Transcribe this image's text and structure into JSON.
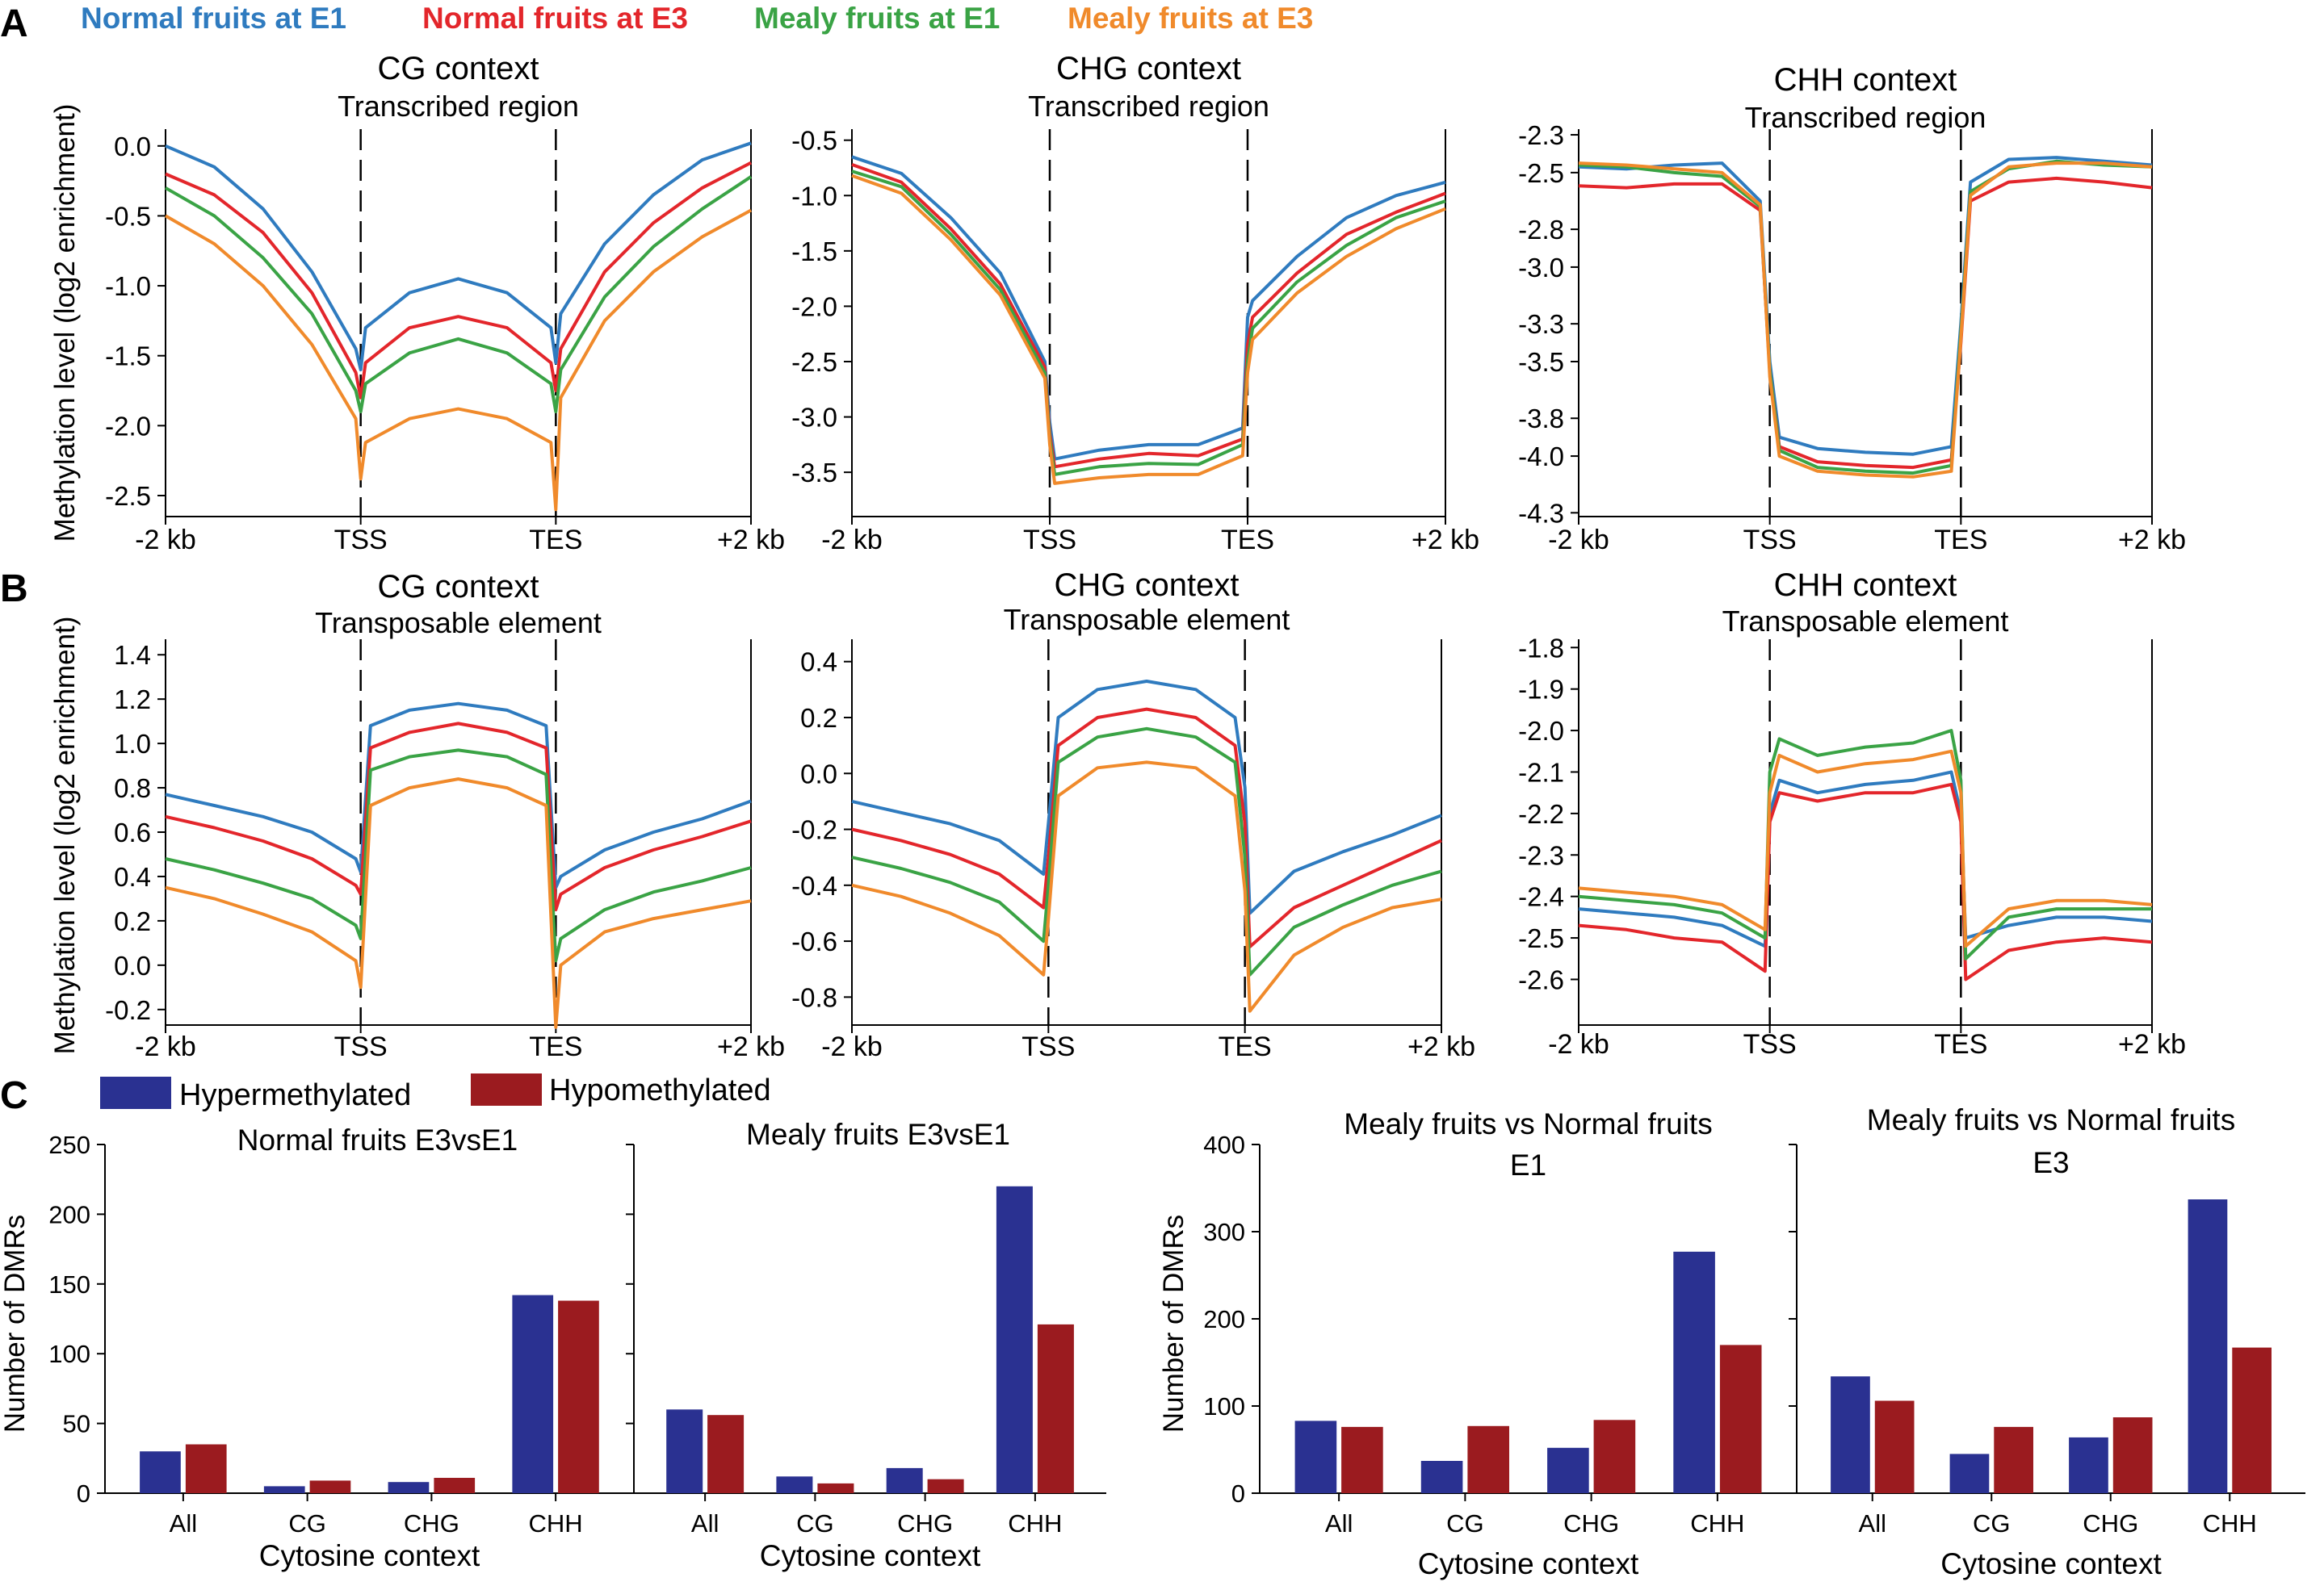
{
  "panel_labels": [
    "A",
    "B",
    "C"
  ],
  "legend": {
    "items": [
      {
        "label": "Normal fruits at E1",
        "color": "#2f7bbf"
      },
      {
        "label": "Normal fruits at E3",
        "color": "#e3262b"
      },
      {
        "label": "Mealy fruits at E1",
        "color": "#3aa345"
      },
      {
        "label": "Mealy fruits at E3",
        "color": "#f08a2b"
      }
    ]
  },
  "bar_legend": {
    "items": [
      {
        "label": "Hypermethylated",
        "color": "#2a3191"
      },
      {
        "label": "Hypomethylated",
        "color": "#9b1b1f"
      }
    ]
  },
  "chart_data": [
    {
      "type": "line",
      "panel": "A",
      "title": "CG context",
      "subtitle": "Transcribed region",
      "ylabel": "Methylation level (log2 enrichment)",
      "x_tick_labels": [
        "-2 kb",
        "TSS",
        "TES",
        "+2 kb"
      ],
      "ylim": [
        -2.65,
        0.12
      ],
      "yticks": [
        0.0,
        -0.5,
        -1.0,
        -1.5,
        -2.0,
        -2.5
      ],
      "ytick_labels": [
        "0.0",
        "-0.5",
        "-1.0",
        "-1.5",
        "-2.0",
        "-2.5"
      ],
      "boundaries": [
        "TSS",
        "TES"
      ],
      "x": [
        0,
        0.5,
        1.0,
        1.5,
        1.95,
        2.0,
        2.05,
        2.5,
        3.0,
        3.5,
        3.95,
        4.0,
        4.05,
        4.5,
        5.0,
        5.5,
        6.0
      ],
      "series": [
        {
          "name": "Normal fruits at E1",
          "values": [
            0.0,
            -0.15,
            -0.45,
            -0.9,
            -1.45,
            -1.6,
            -1.3,
            -1.05,
            -0.95,
            -1.05,
            -1.3,
            -1.55,
            -1.2,
            -0.7,
            -0.35,
            -0.1,
            0.02
          ]
        },
        {
          "name": "Normal fruits at E3",
          "values": [
            -0.2,
            -0.35,
            -0.62,
            -1.05,
            -1.62,
            -1.8,
            -1.55,
            -1.3,
            -1.22,
            -1.3,
            -1.55,
            -1.75,
            -1.45,
            -0.9,
            -0.55,
            -0.3,
            -0.12
          ]
        },
        {
          "name": "Mealy fruits at E1",
          "values": [
            -0.3,
            -0.5,
            -0.8,
            -1.2,
            -1.75,
            -1.9,
            -1.7,
            -1.48,
            -1.38,
            -1.48,
            -1.7,
            -1.9,
            -1.6,
            -1.08,
            -0.72,
            -0.45,
            -0.22
          ]
        },
        {
          "name": "Mealy fruits at E3",
          "values": [
            -0.5,
            -0.7,
            -1.0,
            -1.42,
            -1.95,
            -2.38,
            -2.12,
            -1.95,
            -1.88,
            -1.95,
            -2.12,
            -2.6,
            -1.8,
            -1.25,
            -0.9,
            -0.65,
            -0.46
          ]
        }
      ]
    },
    {
      "type": "line",
      "panel": "A",
      "title": "CHG context",
      "subtitle": "Transcribed region",
      "ylabel": "",
      "x_tick_labels": [
        "-2 kb",
        "TSS",
        "TES",
        "+2 kb"
      ],
      "ylim": [
        -3.9,
        -0.4
      ],
      "yticks": [
        -0.5,
        -1.0,
        -1.5,
        -2.0,
        -2.5,
        -3.0,
        -3.5
      ],
      "ytick_labels": [
        "-0.5",
        "-1.0",
        "-1.5",
        "-2.0",
        "-2.5",
        "-3.0",
        "-3.5"
      ],
      "boundaries": [
        "TSS",
        "TES"
      ],
      "x": [
        0,
        0.5,
        1.0,
        1.5,
        1.95,
        2.0,
        2.05,
        2.5,
        3.0,
        3.5,
        3.95,
        4.0,
        4.05,
        4.5,
        5.0,
        5.5,
        6.0
      ],
      "series": [
        {
          "name": "Normal fruits at E1",
          "values": [
            -0.65,
            -0.8,
            -1.2,
            -1.7,
            -2.5,
            -3.05,
            -3.38,
            -3.3,
            -3.25,
            -3.25,
            -3.1,
            -2.1,
            -1.95,
            -1.55,
            -1.2,
            -1.0,
            -0.88
          ]
        },
        {
          "name": "Normal fruits at E3",
          "values": [
            -0.72,
            -0.88,
            -1.3,
            -1.8,
            -2.55,
            -3.15,
            -3.45,
            -3.38,
            -3.33,
            -3.35,
            -3.2,
            -2.35,
            -2.1,
            -1.7,
            -1.35,
            -1.15,
            -0.98
          ]
        },
        {
          "name": "Mealy fruits at E1",
          "values": [
            -0.78,
            -0.92,
            -1.35,
            -1.85,
            -2.6,
            -3.2,
            -3.52,
            -3.45,
            -3.42,
            -3.43,
            -3.25,
            -2.5,
            -2.2,
            -1.78,
            -1.45,
            -1.2,
            -1.05
          ]
        },
        {
          "name": "Mealy fruits at E3",
          "values": [
            -0.82,
            -0.98,
            -1.4,
            -1.9,
            -2.65,
            -3.25,
            -3.6,
            -3.55,
            -3.52,
            -3.52,
            -3.35,
            -2.6,
            -2.3,
            -1.88,
            -1.55,
            -1.3,
            -1.12
          ]
        }
      ]
    },
    {
      "type": "line",
      "panel": "A",
      "title": "CHH context",
      "subtitle": "Transcribed region",
      "ylabel": "",
      "x_tick_labels": [
        "-2 kb",
        "TSS",
        "TES",
        "+2 kb"
      ],
      "ylim": [
        -4.32,
        -2.27
      ],
      "yticks": [
        -2.3,
        -2.5,
        -2.8,
        -3.0,
        -3.3,
        -3.5,
        -3.8,
        -4.0,
        -4.3
      ],
      "ytick_labels": [
        "-2.3",
        "-2.5",
        "-2.8",
        "-3.0",
        "-3.3",
        "-3.5",
        "-3.8",
        "-4.0",
        "-4.3"
      ],
      "boundaries": [
        "TSS",
        "TES"
      ],
      "x": [
        0,
        0.5,
        1.0,
        1.5,
        1.9,
        2.0,
        2.1,
        2.5,
        3.0,
        3.5,
        3.9,
        4.0,
        4.1,
        4.5,
        5.0,
        5.5,
        6.0
      ],
      "series": [
        {
          "name": "Normal fruits at E1",
          "values": [
            -2.47,
            -2.48,
            -2.46,
            -2.45,
            -2.65,
            -3.5,
            -3.9,
            -3.96,
            -3.98,
            -3.99,
            -3.95,
            -3.3,
            -2.55,
            -2.43,
            -2.42,
            -2.44,
            -2.46
          ]
        },
        {
          "name": "Normal fruits at E3",
          "values": [
            -2.57,
            -2.58,
            -2.56,
            -2.56,
            -2.7,
            -3.55,
            -3.95,
            -4.03,
            -4.05,
            -4.06,
            -4.02,
            -3.4,
            -2.65,
            -2.55,
            -2.53,
            -2.55,
            -2.58
          ]
        },
        {
          "name": "Mealy fruits at E1",
          "values": [
            -2.46,
            -2.47,
            -2.5,
            -2.52,
            -2.68,
            -3.55,
            -3.97,
            -4.06,
            -4.08,
            -4.09,
            -4.05,
            -3.35,
            -2.6,
            -2.48,
            -2.44,
            -2.46,
            -2.47
          ]
        },
        {
          "name": "Mealy fruits at E3",
          "values": [
            -2.45,
            -2.46,
            -2.48,
            -2.5,
            -2.67,
            -3.58,
            -4.0,
            -4.08,
            -4.1,
            -4.11,
            -4.08,
            -3.38,
            -2.62,
            -2.47,
            -2.45,
            -2.45,
            -2.47
          ]
        }
      ]
    },
    {
      "type": "line",
      "panel": "B",
      "title": "CG context",
      "subtitle": "Transposable element",
      "ylabel": "Methylation level (log2 enrichment)",
      "x_tick_labels": [
        "-2 kb",
        "TSS",
        "TES",
        "+2 kb"
      ],
      "ylim": [
        -0.27,
        1.47
      ],
      "yticks": [
        1.4,
        1.2,
        1.0,
        0.8,
        0.6,
        0.4,
        0.2,
        0.0,
        -0.2
      ],
      "ytick_labels": [
        "1.4",
        "1.2",
        "1.0",
        "0.8",
        "0.6",
        "0.4",
        "0.2",
        "0.0",
        "-0.2"
      ],
      "boundaries": [
        "TSS",
        "TES"
      ],
      "x": [
        0,
        0.5,
        1.0,
        1.5,
        1.95,
        2.0,
        2.1,
        2.5,
        3.0,
        3.5,
        3.9,
        4.0,
        4.05,
        4.5,
        5.0,
        5.5,
        6.0
      ],
      "series": [
        {
          "name": "Normal fruits at E1",
          "values": [
            0.77,
            0.72,
            0.67,
            0.6,
            0.48,
            0.42,
            1.08,
            1.15,
            1.18,
            1.15,
            1.08,
            0.35,
            0.4,
            0.52,
            0.6,
            0.66,
            0.74
          ]
        },
        {
          "name": "Normal fruits at E3",
          "values": [
            0.67,
            0.62,
            0.56,
            0.48,
            0.36,
            0.32,
            0.98,
            1.05,
            1.09,
            1.05,
            0.98,
            0.25,
            0.32,
            0.44,
            0.52,
            0.58,
            0.65
          ]
        },
        {
          "name": "Mealy fruits at E1",
          "values": [
            0.48,
            0.43,
            0.37,
            0.3,
            0.18,
            0.12,
            0.88,
            0.94,
            0.97,
            0.94,
            0.86,
            0.02,
            0.12,
            0.25,
            0.33,
            0.38,
            0.44
          ]
        },
        {
          "name": "Mealy fruits at E3",
          "values": [
            0.35,
            0.3,
            0.23,
            0.15,
            0.02,
            -0.1,
            0.72,
            0.8,
            0.84,
            0.8,
            0.72,
            -0.28,
            0.0,
            0.15,
            0.21,
            0.25,
            0.29
          ]
        }
      ]
    },
    {
      "type": "line",
      "panel": "B",
      "title": "CHG context",
      "subtitle": "Transposable element",
      "ylabel": "",
      "x_tick_labels": [
        "-2 kb",
        "TSS",
        "TES",
        "+2 kb"
      ],
      "ylim": [
        -0.9,
        0.48
      ],
      "yticks": [
        0.4,
        0.2,
        0.0,
        -0.2,
        -0.4,
        -0.6,
        -0.8
      ],
      "ytick_labels": [
        "0.4",
        "0.2",
        "0.0",
        "-0.2",
        "-0.4",
        "-0.6",
        "-0.8"
      ],
      "boundaries": [
        "TSS",
        "TES"
      ],
      "x": [
        0,
        0.5,
        1.0,
        1.5,
        1.95,
        2.0,
        2.1,
        2.5,
        3.0,
        3.5,
        3.9,
        4.0,
        4.05,
        4.5,
        5.0,
        5.5,
        6.0
      ],
      "series": [
        {
          "name": "Normal fruits at E1",
          "values": [
            -0.1,
            -0.14,
            -0.18,
            -0.24,
            -0.36,
            -0.18,
            0.2,
            0.3,
            0.33,
            0.3,
            0.2,
            -0.05,
            -0.5,
            -0.35,
            -0.28,
            -0.22,
            -0.15
          ]
        },
        {
          "name": "Normal fruits at E3",
          "values": [
            -0.2,
            -0.24,
            -0.29,
            -0.36,
            -0.48,
            -0.3,
            0.1,
            0.2,
            0.23,
            0.2,
            0.1,
            -0.18,
            -0.62,
            -0.48,
            -0.4,
            -0.32,
            -0.24
          ]
        },
        {
          "name": "Mealy fruits at E1",
          "values": [
            -0.3,
            -0.34,
            -0.39,
            -0.46,
            -0.6,
            -0.4,
            0.04,
            0.13,
            0.16,
            0.13,
            0.04,
            -0.3,
            -0.72,
            -0.55,
            -0.47,
            -0.4,
            -0.35
          ]
        },
        {
          "name": "Mealy fruits at E3",
          "values": [
            -0.4,
            -0.44,
            -0.5,
            -0.58,
            -0.72,
            -0.52,
            -0.08,
            0.02,
            0.04,
            0.02,
            -0.08,
            -0.42,
            -0.85,
            -0.65,
            -0.55,
            -0.48,
            -0.45
          ]
        }
      ]
    },
    {
      "type": "line",
      "panel": "B",
      "title": "CHH context",
      "subtitle": "Transposable element",
      "ylabel": "",
      "x_tick_labels": [
        "-2 kb",
        "TSS",
        "TES",
        "+2 kb"
      ],
      "ylim": [
        -2.71,
        -1.78
      ],
      "yticks": [
        -1.8,
        -1.9,
        -2.0,
        -2.1,
        -2.2,
        -2.3,
        -2.4,
        -2.5,
        -2.6
      ],
      "ytick_labels": [
        "-1.8",
        "-1.9",
        "-2.0",
        "-2.1",
        "-2.2",
        "-2.3",
        "-2.4",
        "-2.5",
        "-2.6"
      ],
      "boundaries": [
        "TSS",
        "TES"
      ],
      "x": [
        0,
        0.5,
        1.0,
        1.5,
        1.95,
        2.0,
        2.1,
        2.5,
        3.0,
        3.5,
        3.9,
        4.0,
        4.05,
        4.5,
        5.0,
        5.5,
        6.0
      ],
      "series": [
        {
          "name": "Normal fruits at E1",
          "values": [
            -2.43,
            -2.44,
            -2.45,
            -2.47,
            -2.52,
            -2.2,
            -2.12,
            -2.15,
            -2.13,
            -2.12,
            -2.1,
            -2.2,
            -2.5,
            -2.47,
            -2.45,
            -2.45,
            -2.46
          ]
        },
        {
          "name": "Normal fruits at E3",
          "values": [
            -2.47,
            -2.48,
            -2.5,
            -2.51,
            -2.58,
            -2.22,
            -2.15,
            -2.17,
            -2.15,
            -2.15,
            -2.13,
            -2.22,
            -2.6,
            -2.53,
            -2.51,
            -2.5,
            -2.51
          ]
        },
        {
          "name": "Mealy fruits at E1",
          "values": [
            -2.4,
            -2.41,
            -2.42,
            -2.44,
            -2.5,
            -2.1,
            -2.02,
            -2.06,
            -2.04,
            -2.03,
            -2.0,
            -2.12,
            -2.55,
            -2.45,
            -2.43,
            -2.43,
            -2.43
          ]
        },
        {
          "name": "Mealy fruits at E3",
          "values": [
            -2.38,
            -2.39,
            -2.4,
            -2.42,
            -2.48,
            -2.15,
            -2.06,
            -2.1,
            -2.08,
            -2.07,
            -2.05,
            -2.15,
            -2.52,
            -2.43,
            -2.41,
            -2.41,
            -2.42
          ]
        }
      ]
    },
    {
      "type": "bar",
      "panel": "C",
      "title": "Normal fruits E3vsE1",
      "subtitle": "",
      "xlabel": "Cytosine context",
      "ylabel": "Number of DMRs",
      "categories": [
        "All",
        "CG",
        "CHG",
        "CHH"
      ],
      "ylim": [
        0,
        250
      ],
      "yticks": [
        0,
        50,
        100,
        150,
        200,
        250
      ],
      "ytick_labels": [
        "0",
        "50",
        "100",
        "150",
        "200",
        "250"
      ],
      "series": [
        {
          "name": "Hypermethylated",
          "values": [
            30,
            5,
            8,
            142
          ]
        },
        {
          "name": "Hypomethylated",
          "values": [
            35,
            9,
            11,
            138
          ]
        }
      ]
    },
    {
      "type": "bar",
      "panel": "C",
      "title": "Mealy fruits E3vsE1",
      "subtitle": "",
      "xlabel": "Cytosine context",
      "ylabel": "",
      "categories": [
        "All",
        "CG",
        "CHG",
        "CHH"
      ],
      "ylim": [
        0,
        250
      ],
      "yticks": [
        0,
        50,
        100,
        150,
        200,
        250
      ],
      "ytick_labels": [],
      "series": [
        {
          "name": "Hypermethylated",
          "values": [
            60,
            12,
            18,
            220
          ]
        },
        {
          "name": "Hypomethylated",
          "values": [
            56,
            7,
            10,
            121
          ]
        }
      ]
    },
    {
      "type": "bar",
      "panel": "C",
      "title": "Mealy fruits vs Normal fruits",
      "subtitle": "E1",
      "xlabel": "Cytosine context",
      "ylabel": "Number of DMRs",
      "categories": [
        "All",
        "CG",
        "CHG",
        "CHH"
      ],
      "ylim": [
        0,
        400
      ],
      "yticks": [
        0,
        100,
        200,
        300,
        400
      ],
      "ytick_labels": [
        "0",
        "100",
        "200",
        "300",
        "400"
      ],
      "series": [
        {
          "name": "Hypermethylated",
          "values": [
            83,
            37,
            52,
            277
          ]
        },
        {
          "name": "Hypomethylated",
          "values": [
            76,
            77,
            84,
            170
          ]
        }
      ]
    },
    {
      "type": "bar",
      "panel": "C",
      "title": "Mealy fruits vs Normal fruits",
      "subtitle": "E3",
      "xlabel": "Cytosine context",
      "ylabel": "",
      "categories": [
        "All",
        "CG",
        "CHG",
        "CHH"
      ],
      "ylim": [
        0,
        400
      ],
      "yticks": [
        0,
        100,
        200,
        300,
        400
      ],
      "ytick_labels": [],
      "series": [
        {
          "name": "Hypermethylated",
          "values": [
            134,
            45,
            64,
            337
          ]
        },
        {
          "name": "Hypomethylated",
          "values": [
            106,
            76,
            87,
            167
          ]
        }
      ]
    }
  ]
}
